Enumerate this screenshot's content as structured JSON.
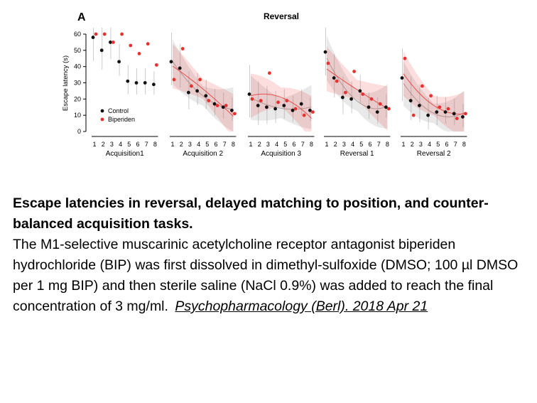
{
  "figure": {
    "panel_letter": "A",
    "title": "Reversal",
    "ylabel": "Escape latency (s)"
  },
  "chart_data": {
    "type": "scatter",
    "title": "Reversal",
    "ylabel": "Escape latency (s)",
    "ylim": [
      0,
      60
    ],
    "yticks": [
      0,
      10,
      20,
      30,
      40,
      50,
      60
    ],
    "xticks": [
      1,
      2,
      3,
      4,
      5,
      6,
      7,
      8
    ],
    "grid": false,
    "legend_position": "bottom-left of first panel",
    "series_names": [
      "Control",
      "Biperiden"
    ],
    "series_colors": {
      "Control": "#111111",
      "Biperiden": "#e8312e"
    },
    "panels": [
      {
        "name": "Acquisition1",
        "fit": false,
        "control": [
          58,
          50,
          55,
          43,
          31,
          30,
          30,
          29
        ],
        "biperiden": [
          60,
          60,
          55,
          60,
          53,
          48,
          54,
          41
        ]
      },
      {
        "name": "Acquisition 2",
        "fit": true,
        "control": [
          43,
          39,
          24,
          25,
          22,
          17,
          15,
          13
        ],
        "biperiden": [
          32,
          51,
          28,
          32,
          19,
          16,
          16,
          11
        ]
      },
      {
        "name": "Acquisition 3",
        "fit": true,
        "control": [
          23,
          16,
          15,
          14,
          16,
          13,
          17,
          13
        ],
        "biperiden": [
          20,
          19,
          36,
          18,
          19,
          14,
          10,
          12
        ]
      },
      {
        "name": "Reversal 1",
        "fit": true,
        "control": [
          49,
          33,
          21,
          20,
          25,
          15,
          12,
          15
        ],
        "biperiden": [
          42,
          31,
          24,
          37,
          23,
          20,
          17,
          14
        ]
      },
      {
        "name": "Reversal 2",
        "fit": true,
        "control": [
          33,
          19,
          16,
          10,
          12,
          12,
          11,
          9
        ],
        "biperiden": [
          45,
          10,
          28,
          22,
          15,
          14,
          8,
          11
        ]
      }
    ]
  },
  "caption": {
    "title": "Escape latencies in reversal, delayed matching to position, and counter-balanced acquisition tasks.",
    "body": "The M1-selective muscarinic acetylcholine receptor antagonist biperiden hydrochloride (BIP) was first dissolved in dimethyl-sulfoxide (DMSO; 100 µl DMSO per 1 mg BIP) and then sterile saline (NaCl 0.9%) was added to reach the final concentration of 3 mg/ml.",
    "citation": "Psychopharmacology (Berl). 2018 Apr 21"
  }
}
